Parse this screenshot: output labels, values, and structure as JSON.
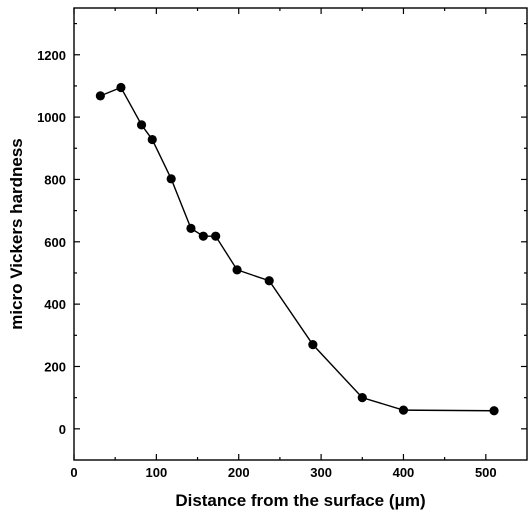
{
  "chart_data": {
    "type": "line",
    "xlabel": "Distance from the surface (μm)",
    "ylabel": "micro Vickers hardness",
    "xlim": [
      0,
      550
    ],
    "ylim": [
      -100,
      1350
    ],
    "xticks": [
      0,
      100,
      200,
      300,
      400,
      500
    ],
    "yticks": [
      0,
      200,
      400,
      600,
      800,
      1000,
      1200
    ],
    "grid": false,
    "series": [
      {
        "x": [
          32,
          57,
          82,
          95,
          118,
          142,
          157,
          172,
          198,
          237,
          290,
          350,
          400,
          510
        ],
        "y": [
          1068,
          1095,
          975,
          928,
          802,
          643,
          618,
          618,
          510,
          475,
          270,
          100,
          60,
          58
        ],
        "marker": "filled-circle",
        "color": "#000000"
      }
    ]
  }
}
